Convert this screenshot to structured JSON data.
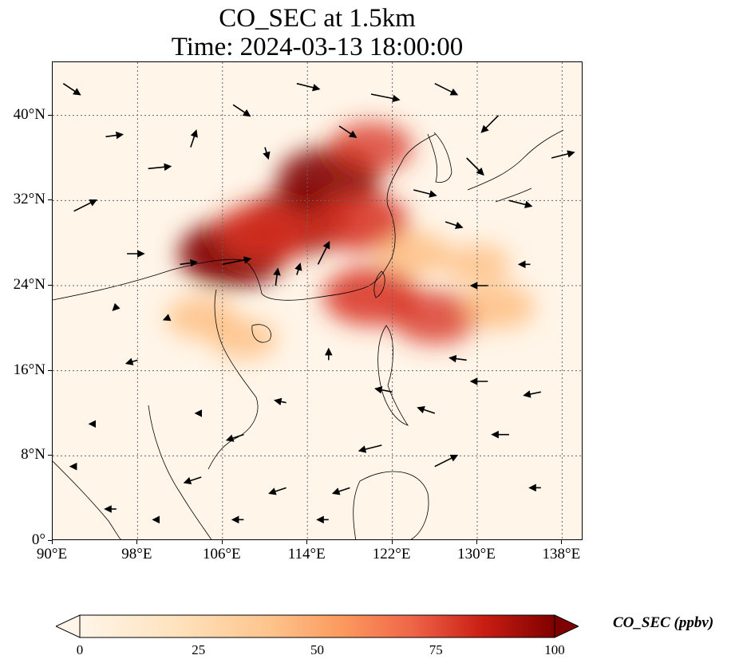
{
  "title": {
    "line1": "CO_SEC at 1.5km",
    "line2": "Time: 2024-03-13 18:00:00"
  },
  "map": {
    "lon_range": [
      90,
      140
    ],
    "lat_range": [
      0,
      45
    ],
    "lon_ticks": [
      90,
      98,
      106,
      114,
      122,
      130,
      138
    ],
    "lon_tick_labels": [
      "90°E",
      "98°E",
      "106°E",
      "114°E",
      "122°E",
      "130°E",
      "138°E"
    ],
    "lat_ticks": [
      0,
      8,
      16,
      24,
      32,
      40
    ],
    "lat_tick_labels": [
      "0°",
      "8°N",
      "16°N",
      "24°N",
      "32°N",
      "40°N"
    ],
    "gridlines": "dotted",
    "colormap": "OrRd",
    "colors": {
      "low": "#fff5e8",
      "mid": "#fdb46f",
      "high": "#d7301f",
      "max": "#7f0000"
    },
    "plumes": [
      {
        "lon": 113,
        "lat": 30,
        "value": 90
      },
      {
        "lon": 107,
        "lat": 27,
        "value": 95
      },
      {
        "lon": 116,
        "lat": 34,
        "value": 85
      },
      {
        "lon": 110,
        "lat": 29,
        "value": 80
      },
      {
        "lon": 119,
        "lat": 30,
        "value": 75
      },
      {
        "lon": 120,
        "lat": 23,
        "value": 75
      },
      {
        "lon": 126,
        "lat": 21,
        "value": 60
      },
      {
        "lon": 132,
        "lat": 22,
        "value": 40
      },
      {
        "lon": 104,
        "lat": 21,
        "value": 35
      },
      {
        "lon": 108,
        "lat": 19,
        "value": 30
      },
      {
        "lon": 124,
        "lat": 27,
        "value": 40
      },
      {
        "lon": 130,
        "lat": 26,
        "value": 30
      },
      {
        "lon": 100,
        "lat": 14,
        "value": 12
      },
      {
        "lon": 120,
        "lat": 37,
        "value": 55
      }
    ],
    "wind_vectors": [
      {
        "lon": 91,
        "lat": 43,
        "u": 1.5,
        "v": -1
      },
      {
        "lon": 95,
        "lat": 38,
        "u": 1.5,
        "v": 0.2
      },
      {
        "lon": 99,
        "lat": 35,
        "u": 2,
        "v": 0.2
      },
      {
        "lon": 103,
        "lat": 37,
        "u": 0.5,
        "v": 1.5
      },
      {
        "lon": 107,
        "lat": 41,
        "u": 1.5,
        "v": -1
      },
      {
        "lon": 113,
        "lat": 43,
        "u": 2,
        "v": -0.5
      },
      {
        "lon": 120,
        "lat": 42,
        "u": 2.5,
        "v": -0.5
      },
      {
        "lon": 126,
        "lat": 43,
        "u": 2,
        "v": -1
      },
      {
        "lon": 132,
        "lat": 40,
        "u": -1.5,
        "v": -1.5
      },
      {
        "lon": 137,
        "lat": 36,
        "u": 2,
        "v": 0.5
      },
      {
        "lon": 129,
        "lat": 36,
        "u": 1.5,
        "v": -1.5
      },
      {
        "lon": 133,
        "lat": 32,
        "u": 2,
        "v": -0.5
      },
      {
        "lon": 92,
        "lat": 31,
        "u": 2,
        "v": 1
      },
      {
        "lon": 97,
        "lat": 27,
        "u": 1.5,
        "v": 0
      },
      {
        "lon": 102,
        "lat": 26,
        "u": 1.5,
        "v": 0.2
      },
      {
        "lon": 106,
        "lat": 26,
        "u": 2.5,
        "v": 0.5
      },
      {
        "lon": 113,
        "lat": 25,
        "u": 0.3,
        "v": 1
      },
      {
        "lon": 111,
        "lat": 24,
        "u": 0.2,
        "v": 1.5
      },
      {
        "lon": 115,
        "lat": 26,
        "u": 1,
        "v": 2
      },
      {
        "lon": 101,
        "lat": 21,
        "u": -0.5,
        "v": -0.2
      },
      {
        "lon": 98,
        "lat": 17,
        "u": -1,
        "v": -0.3
      },
      {
        "lon": 104,
        "lat": 12,
        "u": -0.5,
        "v": 0
      },
      {
        "lon": 108,
        "lat": 10,
        "u": -1.5,
        "v": -0.5
      },
      {
        "lon": 112,
        "lat": 13,
        "u": -1,
        "v": 0.2
      },
      {
        "lon": 116,
        "lat": 17,
        "u": 0,
        "v": 1
      },
      {
        "lon": 122,
        "lat": 14,
        "u": -1.5,
        "v": 0.3
      },
      {
        "lon": 126,
        "lat": 12,
        "u": -1.5,
        "v": 0.5
      },
      {
        "lon": 121,
        "lat": 9,
        "u": -2,
        "v": -0.5
      },
      {
        "lon": 126,
        "lat": 7,
        "u": 2,
        "v": 1
      },
      {
        "lon": 118,
        "lat": 5,
        "u": -1.5,
        "v": -0.5
      },
      {
        "lon": 112,
        "lat": 5,
        "u": -1.5,
        "v": -0.5
      },
      {
        "lon": 104,
        "lat": 6,
        "u": -1.5,
        "v": -0.5
      },
      {
        "lon": 96,
        "lat": 3,
        "u": -1,
        "v": 0
      },
      {
        "lon": 100,
        "lat": 2,
        "u": -0.5,
        "v": 0
      },
      {
        "lon": 108,
        "lat": 2,
        "u": -1,
        "v": 0
      },
      {
        "lon": 116,
        "lat": 2,
        "u": -1,
        "v": 0
      },
      {
        "lon": 131,
        "lat": 15,
        "u": -1.5,
        "v": 0
      },
      {
        "lon": 136,
        "lat": 14,
        "u": -1.5,
        "v": -0.3
      },
      {
        "lon": 133,
        "lat": 10,
        "u": -1.5,
        "v": 0
      },
      {
        "lon": 129,
        "lat": 17,
        "u": -1.5,
        "v": 0.2
      },
      {
        "lon": 131,
        "lat": 24,
        "u": -1.5,
        "v": 0
      },
      {
        "lon": 135,
        "lat": 26,
        "u": -1,
        "v": 0
      },
      {
        "lon": 127,
        "lat": 30,
        "u": 1.5,
        "v": -0.5
      },
      {
        "lon": 124,
        "lat": 33,
        "u": 2,
        "v": -0.5
      },
      {
        "lon": 110,
        "lat": 37,
        "u": 0.3,
        "v": -1
      },
      {
        "lon": 117,
        "lat": 39,
        "u": 1.5,
        "v": -1
      },
      {
        "lon": 96,
        "lat": 22,
        "u": -0.3,
        "v": -0.3
      },
      {
        "lon": 94,
        "lat": 11,
        "u": -0.5,
        "v": 0
      },
      {
        "lon": 92,
        "lat": 7,
        "u": -0.3,
        "v": 0
      },
      {
        "lon": 136,
        "lat": 5,
        "u": -1,
        "v": 0
      }
    ]
  },
  "colorbar": {
    "title": "CO_SEC (ppbv)",
    "min": 0,
    "max": 100,
    "ticks": [
      0,
      25,
      50,
      75,
      100
    ],
    "tick_labels": [
      "0",
      "25",
      "50",
      "75",
      "100"
    ],
    "extend": "both"
  }
}
